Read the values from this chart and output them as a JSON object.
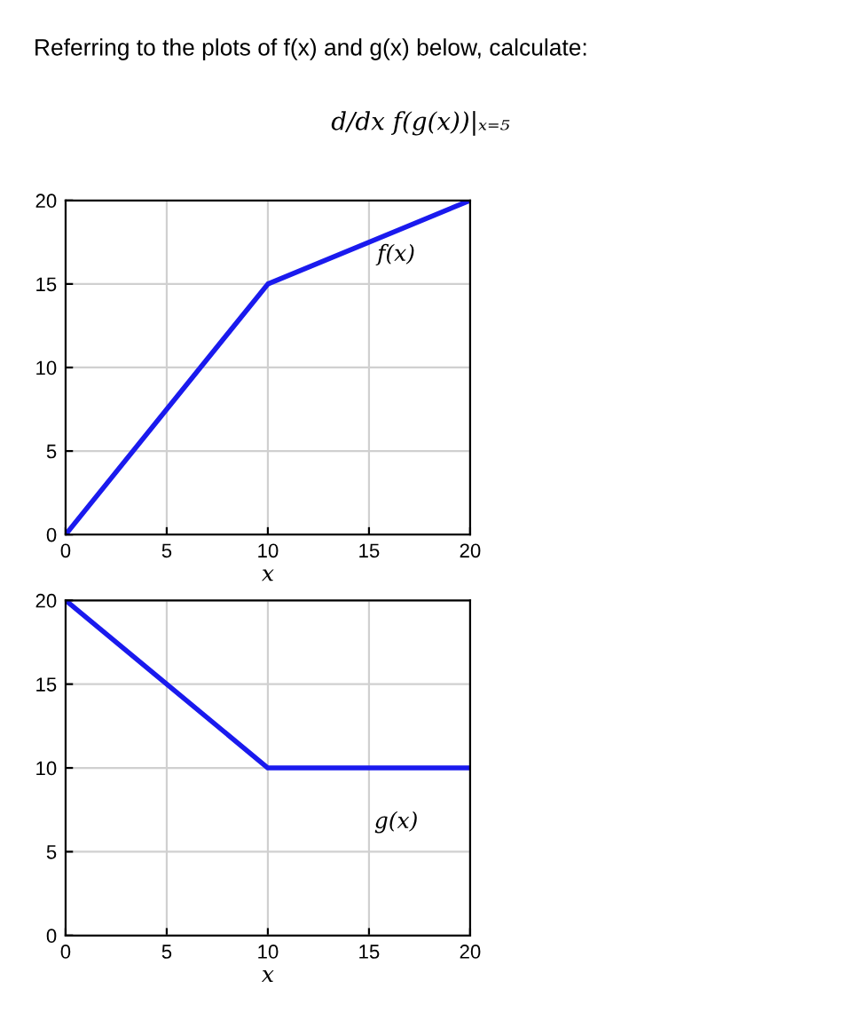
{
  "chart_data": [
    {
      "type": "line",
      "title": "Referring to the plots of f(x) and g(x) below, calculate:",
      "subtitle": "d/dx f(g(x))|ₓ₌₅",
      "xlabel": "x",
      "x": [
        0,
        10,
        20
      ],
      "series": [
        {
          "name": "f(x)",
          "color": "#1a1aee",
          "values": [
            0,
            15,
            20
          ]
        }
      ],
      "xlim": [
        0,
        20
      ],
      "xticks": [
        0,
        5,
        10,
        15,
        20
      ],
      "ylim": [
        0,
        20
      ],
      "yticks": [
        0,
        5,
        10,
        15,
        20
      ],
      "grid": true,
      "marker": "none",
      "line_style": "solid"
    },
    {
      "type": "line",
      "xlabel": "x",
      "x": [
        0,
        10,
        20
      ],
      "series": [
        {
          "name": "g(x)",
          "color": "#1a1aee",
          "values": [
            20,
            10,
            10
          ]
        }
      ],
      "xlim": [
        0,
        20
      ],
      "xticks": [
        0,
        5,
        10,
        15,
        20
      ],
      "ylim": [
        0,
        20
      ],
      "yticks": [
        0,
        5,
        10,
        15,
        20
      ],
      "grid": true,
      "marker": "none",
      "line_style": "solid"
    }
  ]
}
